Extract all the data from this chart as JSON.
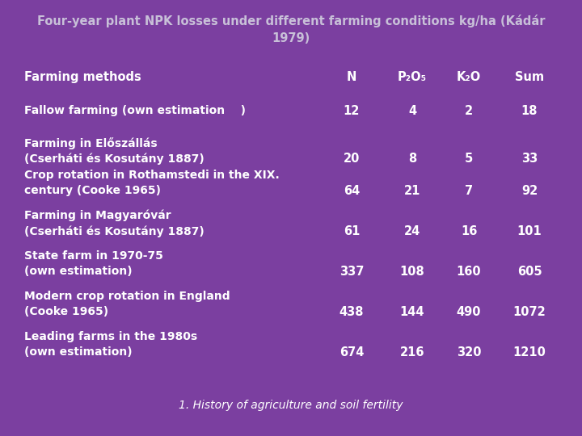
{
  "title_line1": "Four-year plant NPK losses under different farming conditions kg/ha (Kádár",
  "title_line2": "1979)",
  "bg_color": "#7B3FA0",
  "text_color": "#FFFFFF",
  "title_color": "#C8C0D8",
  "italic_footer": "1. History of agriculture and soil fertility",
  "col_headers": [
    "Farming methods",
    "N",
    "P₂O₅",
    "K₂O",
    "Sum"
  ],
  "rows": [
    {
      "label_line1": "Fallow farming (own estimation    )",
      "label_line2": "",
      "N": "12",
      "P2O5": "4",
      "K2O": "2",
      "Sum": "18"
    },
    {
      "label_line1": "Farming in Előszállás",
      "label_line2": "(Cserháti és Kosutány 1887)",
      "N": "20",
      "P2O5": "8",
      "K2O": "5",
      "Sum": "33"
    },
    {
      "label_line1": "Crop rotation in Rothamstedi in the XIX.",
      "label_line2": "century (Cooke 1965)",
      "N": "64",
      "P2O5": "21",
      "K2O": "7",
      "Sum": "92"
    },
    {
      "label_line1": "Farming in Magyaróvár",
      "label_line2": "(Cserháti és Kosutány 1887)",
      "N": "61",
      "P2O5": "24",
      "K2O": "16",
      "Sum": "101"
    },
    {
      "label_line1": "State farm in 1970-75",
      "label_line2": "(own estimation)",
      "N": "337",
      "P2O5": "108",
      "K2O": "160",
      "Sum": "605"
    },
    {
      "label_line1": "Modern crop rotation in England",
      "label_line2": "(Cooke 1965)",
      "N": "438",
      "P2O5": "144",
      "K2O": "490",
      "Sum": "1072"
    },
    {
      "label_line1": "Leading farms in the 1980s",
      "label_line2": "(own estimation)",
      "N": "674",
      "P2O5": "216",
      "K2O": "320",
      "Sum": "1210"
    }
  ],
  "fig_width": 7.2,
  "fig_height": 5.4,
  "dpi": 100
}
